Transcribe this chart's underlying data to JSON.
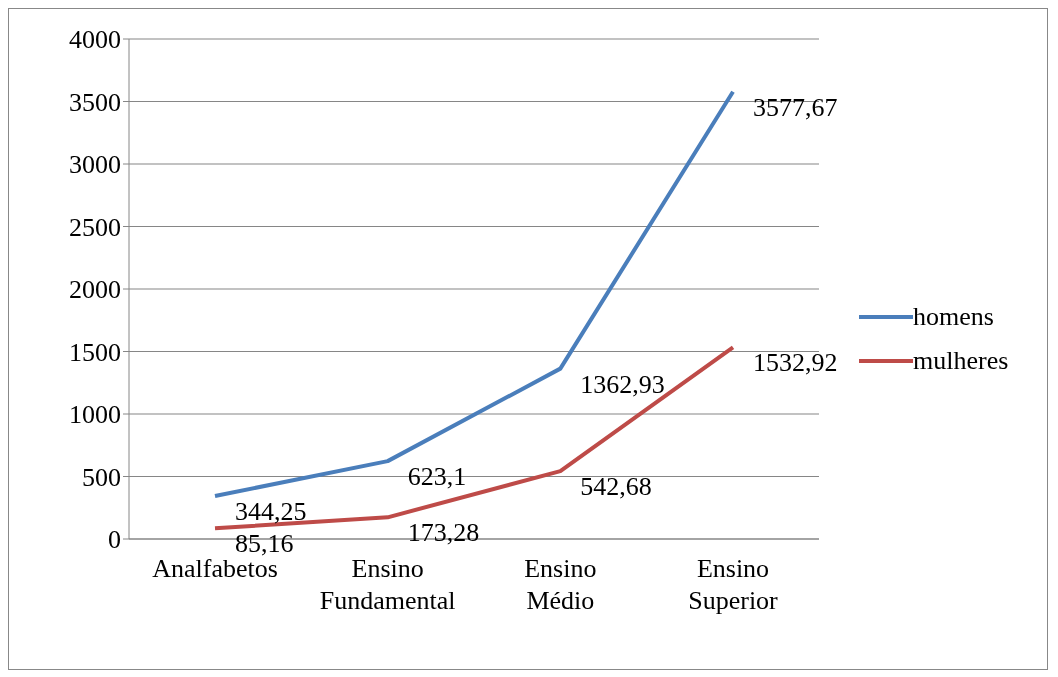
{
  "chart_data": {
    "type": "line",
    "categories": [
      "Analfabetos",
      "Ensino Fundamental",
      "Ensino Médio",
      "Ensino Superior"
    ],
    "series": [
      {
        "name": "homens",
        "color": "#4a7ebb",
        "values": [
          344.25,
          623.1,
          1362.93,
          3577.67
        ],
        "value_labels": [
          "344,25",
          "623,1",
          "1362,93",
          "3577,67"
        ]
      },
      {
        "name": "mulheres",
        "color": "#be4b48",
        "values": [
          85.16,
          173.28,
          542.68,
          1532.92
        ],
        "value_labels": [
          "85,16",
          "173,28",
          "542,68",
          "1532,92"
        ]
      }
    ],
    "ylim": [
      0,
      4000
    ],
    "yticks": [
      0,
      500,
      1000,
      1500,
      2000,
      2500,
      3000,
      3500,
      4000
    ],
    "grid": "y",
    "legend": "right",
    "marker": "none",
    "line_style": "solid"
  }
}
